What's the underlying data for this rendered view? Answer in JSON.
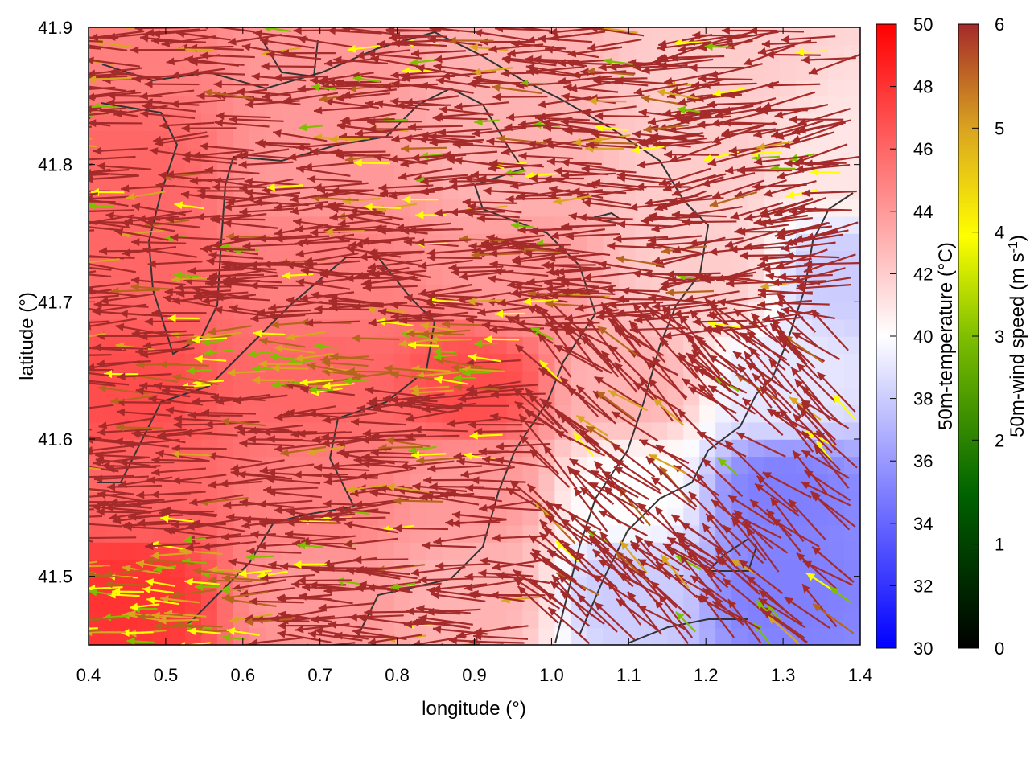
{
  "chart_data": {
    "type": "heatmap",
    "xlabel": "longitude (°)",
    "ylabel": "latitude (°)",
    "xlim": [
      0.4,
      1.4
    ],
    "ylim": [
      41.45,
      41.9
    ],
    "x_ticks": [
      "0.4",
      "0.5",
      "0.6",
      "0.7",
      "0.8",
      "0.9",
      "1.0",
      "1.1",
      "1.2",
      "1.3",
      "1.4"
    ],
    "y_ticks": [
      "41.5",
      "41.6",
      "41.7",
      "41.8",
      "41.9"
    ],
    "x_tick_values": [
      0.4,
      0.5,
      0.6,
      0.7,
      0.8,
      0.9,
      1.0,
      1.1,
      1.2,
      1.3,
      1.4
    ],
    "y_tick_values": [
      41.5,
      41.6,
      41.7,
      41.8,
      41.9
    ],
    "grid": false,
    "temperature_colorbar": {
      "label": "50m-temperature (°C)",
      "range": [
        30,
        50
      ],
      "ticks": [
        "30",
        "32",
        "34",
        "36",
        "38",
        "40",
        "42",
        "44",
        "46",
        "48",
        "50"
      ],
      "colors": {
        "low": "#0000ff",
        "mid": "#ffffff",
        "high": "#ff0000"
      }
    },
    "wind_colorbar": {
      "label": "50m-wind speed (m s-1)",
      "range": [
        0,
        6
      ],
      "ticks": [
        "0",
        "1",
        "2",
        "3",
        "4",
        "5",
        "6"
      ],
      "colors": [
        "#000000",
        "#006400",
        "#7fbf00",
        "#ffff00",
        "#daa520",
        "#b5651d",
        "#a52a2a"
      ]
    },
    "temperature_field_approx": [
      {
        "lon": 0.45,
        "lat": 41.88,
        "temp": 45
      },
      {
        "lon": 0.7,
        "lat": 41.88,
        "temp": 44
      },
      {
        "lon": 0.95,
        "lat": 41.88,
        "temp": 43
      },
      {
        "lon": 1.2,
        "lat": 41.88,
        "temp": 42
      },
      {
        "lon": 0.45,
        "lat": 41.8,
        "temp": 46
      },
      {
        "lon": 0.7,
        "lat": 41.8,
        "temp": 44
      },
      {
        "lon": 0.95,
        "lat": 41.8,
        "temp": 43
      },
      {
        "lon": 1.2,
        "lat": 41.8,
        "temp": 42
      },
      {
        "lon": 1.38,
        "lat": 41.8,
        "temp": 41
      },
      {
        "lon": 0.45,
        "lat": 41.72,
        "temp": 46
      },
      {
        "lon": 0.7,
        "lat": 41.72,
        "temp": 45
      },
      {
        "lon": 0.95,
        "lat": 41.72,
        "temp": 44
      },
      {
        "lon": 1.2,
        "lat": 41.72,
        "temp": 42
      },
      {
        "lon": 1.38,
        "lat": 41.72,
        "temp": 38
      },
      {
        "lon": 0.45,
        "lat": 41.64,
        "temp": 47
      },
      {
        "lon": 0.7,
        "lat": 41.64,
        "temp": 46
      },
      {
        "lon": 0.9,
        "lat": 41.64,
        "temp": 47
      },
      {
        "lon": 1.1,
        "lat": 41.64,
        "temp": 43
      },
      {
        "lon": 1.3,
        "lat": 41.64,
        "temp": 39
      },
      {
        "lon": 0.45,
        "lat": 41.56,
        "temp": 46
      },
      {
        "lon": 0.7,
        "lat": 41.56,
        "temp": 45
      },
      {
        "lon": 0.9,
        "lat": 41.56,
        "temp": 44
      },
      {
        "lon": 1.1,
        "lat": 41.56,
        "temp": 40
      },
      {
        "lon": 1.3,
        "lat": 41.56,
        "temp": 35
      },
      {
        "lon": 0.45,
        "lat": 41.49,
        "temp": 48
      },
      {
        "lon": 0.7,
        "lat": 41.49,
        "temp": 44
      },
      {
        "lon": 0.9,
        "lat": 41.49,
        "temp": 43
      },
      {
        "lon": 1.1,
        "lat": 41.49,
        "temp": 38
      },
      {
        "lon": 1.3,
        "lat": 41.49,
        "temp": 35
      }
    ],
    "wind_field_approx": {
      "dominant_direction": "westward",
      "speed_range": [
        0,
        6
      ],
      "note_weak_wind_band_lat": 41.66
    }
  }
}
